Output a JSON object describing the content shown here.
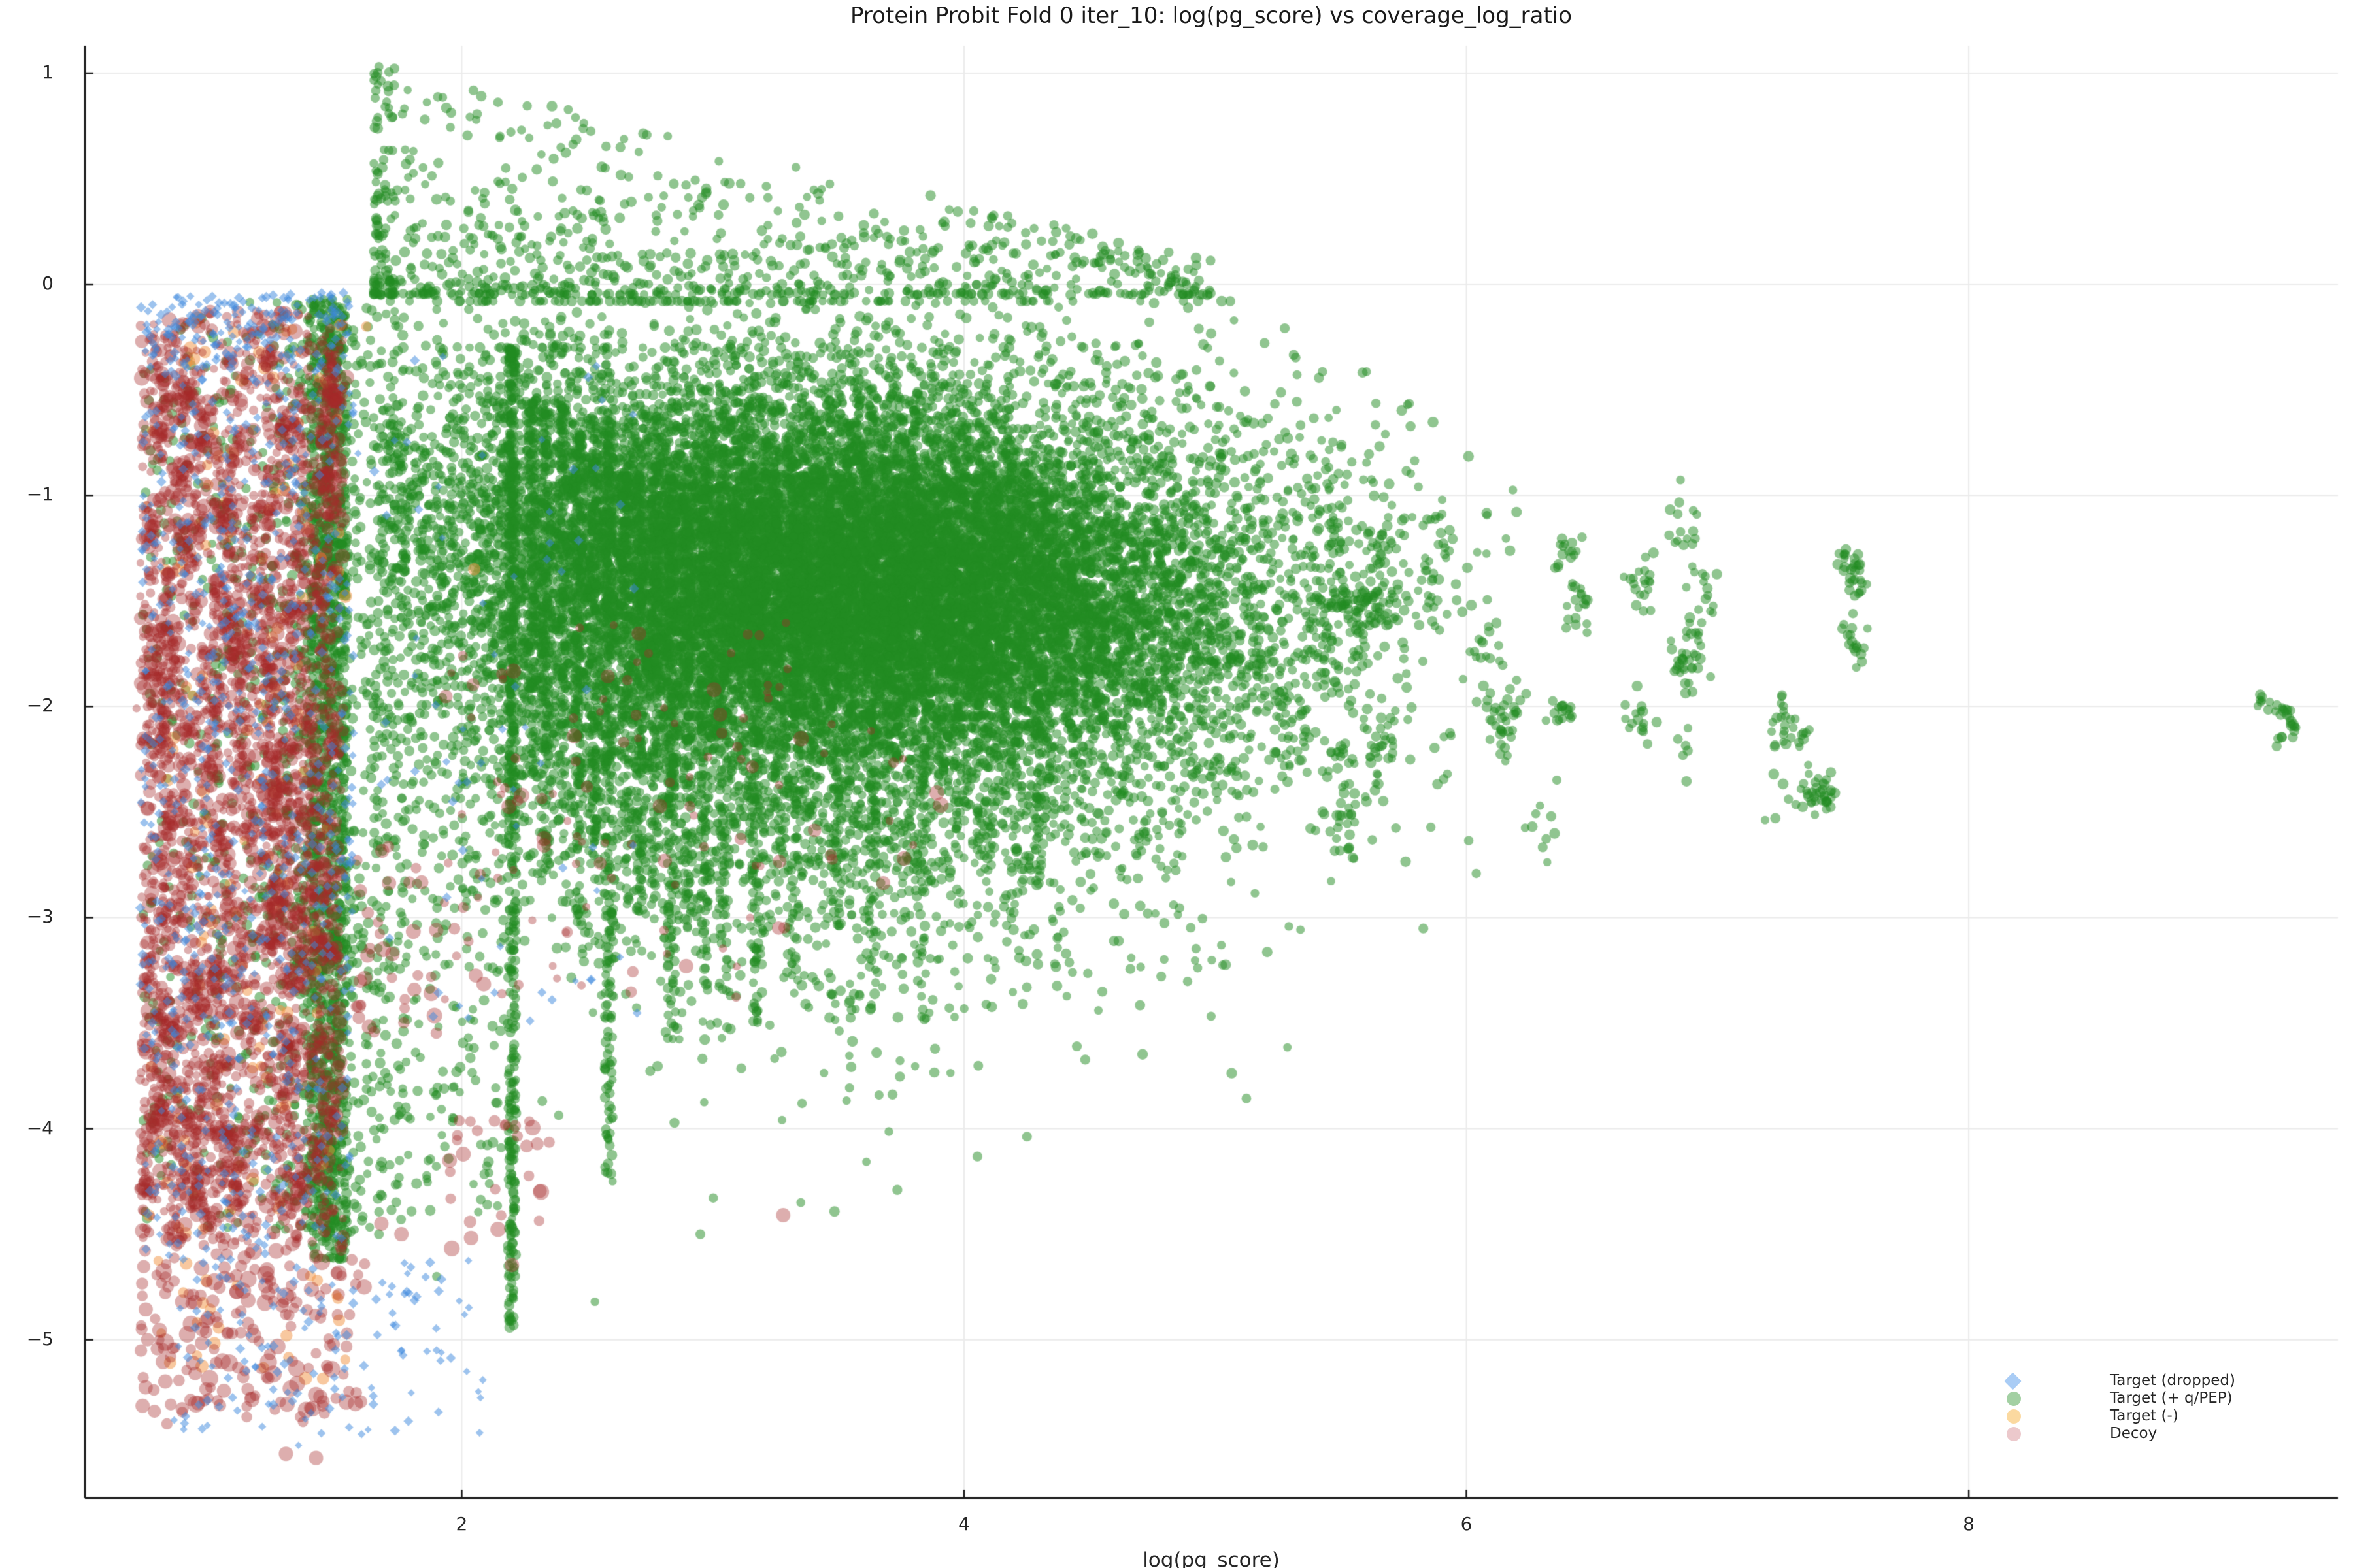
{
  "chart_data": {
    "type": "scatter",
    "title": "Protein Probit Fold 0 iter_10: log(pg_score) vs coverage_log_ratio",
    "xlabel": "log(pg_score)",
    "ylabel": "",
    "xlim": [
      0.5,
      9.47
    ],
    "ylim": [
      -5.75,
      1.13
    ],
    "xticks": [
      2,
      4,
      6,
      8
    ],
    "yticks": [
      1,
      0,
      -1,
      -2,
      -3,
      -4,
      -5
    ],
    "grid": true,
    "grid_color": "#ebebeb",
    "spine_color": "#1a1a1a",
    "text_color": "#262626",
    "legend": {
      "position": "lower-right",
      "items": [
        {
          "label": "Target (dropped)",
          "marker": "diamond",
          "swatch": "#a9ccf5"
        },
        {
          "label": "Target (+ q/PEP)",
          "marker": "circle",
          "swatch": "#a3d0a3"
        },
        {
          "label": "Target (-)",
          "marker": "circle",
          "swatch": "#fbd9a0"
        },
        {
          "label": "Decoy",
          "marker": "circle",
          "swatch": "#ecc9cc"
        }
      ]
    },
    "draw_order": [
      "target_plus",
      "target_minus",
      "decoy",
      "target_dropped"
    ],
    "series": {
      "target_plus": {
        "name": "Target (+ q/PEP)",
        "marker": "circle",
        "color": "#228b22",
        "alpha": 0.5,
        "r": [
          6.3,
          8.3
        ],
        "regions": [
          {
            "type": "gauss",
            "n": 12000,
            "cx": 3.55,
            "cy": -1.32,
            "sx": 0.95,
            "sy": 0.5,
            "cy_slope": -0.12,
            "clipx": [
              1.66,
              6.1
            ],
            "clipy": [
              -5.7,
              -0.08
            ]
          },
          {
            "type": "gauss",
            "n": 4500,
            "cx": 3.15,
            "cy": -1.95,
            "sx": 0.85,
            "sy": 0.68,
            "cy_slope": -0.15,
            "clipx": [
              1.66,
              5.3
            ],
            "clipy": [
              -5.7,
              -0.3
            ]
          },
          {
            "type": "gauss",
            "n": 5000,
            "cx": 3.6,
            "cy": -1.45,
            "sx": 0.62,
            "sy": 0.36,
            "cy_slope": 0,
            "clipx": [
              1.8,
              5.6
            ],
            "clipy": [
              -5.7,
              -0.15
            ]
          },
          {
            "type": "fan",
            "n": 900,
            "x": [
              1.65,
              5.0
            ],
            "xpow": 1.6,
            "ytop0": 1.05,
            "ytop_slope": -0.28,
            "ybase": -0.05,
            "ypow": 2.2
          },
          {
            "type": "columns",
            "w": 0.016,
            "ypow": 1.35,
            "cols": [
              [
                2.2,
                -0.3,
                -4.95,
                500
              ],
              [
                2.28,
                -0.55,
                -2.3,
                110
              ],
              [
                2.335,
                -0.6,
                -2.8,
                140
              ],
              [
                2.4,
                -0.55,
                -2.55,
                120
              ],
              [
                2.465,
                -0.7,
                -3.05,
                150
              ],
              [
                2.525,
                -0.8,
                -2.65,
                110
              ],
              [
                2.585,
                -0.6,
                -4.25,
                240
              ],
              [
                2.65,
                -0.9,
                -2.95,
                110
              ],
              [
                2.71,
                -0.9,
                -3.1,
                130
              ],
              [
                2.77,
                -1.0,
                -2.85,
                100
              ],
              [
                2.835,
                -0.85,
                -3.6,
                160
              ],
              [
                2.9,
                -1.0,
                -3.05,
                100
              ],
              [
                2.965,
                -0.95,
                -3.35,
                120
              ],
              [
                3.04,
                -1.05,
                -3.35,
                110
              ],
              [
                3.17,
                -1.1,
                -3.5,
                120
              ],
              [
                3.33,
                -1.1,
                -3.3,
                100
              ],
              [
                3.5,
                -1.2,
                -3.05,
                90
              ],
              [
                3.635,
                -1.3,
                -3.45,
                85
              ],
              [
                3.84,
                -1.6,
                -3.5,
                65
              ],
              [
                4.3,
                -1.8,
                -2.85,
                55
              ]
            ]
          },
          {
            "type": "uniform",
            "n": 1500,
            "x": [
              1.4,
              1.545
            ],
            "y": [
              -4.62,
              -0.07
            ]
          },
          {
            "type": "uniform",
            "n": 700,
            "x": [
              0.73,
              1.4
            ],
            "xpow": -1.8,
            "y": [
              -4.5,
              -0.07
            ]
          },
          {
            "type": "uniform",
            "n": 350,
            "x": [
              1.55,
              1.78
            ],
            "y": [
              -4.5,
              -0.1
            ]
          },
          {
            "type": "uniform",
            "n": 120,
            "x": [
              1.78,
              2.18
            ],
            "y": [
              -4.4,
              -2.6
            ]
          },
          {
            "type": "clumps",
            "count": 38,
            "cx": [
              5.45,
              7.6
            ],
            "cxpow": 1.4,
            "cy": [
              -2.6,
              -1.0
            ],
            "k": [
              4,
              22
            ],
            "sx": 0.03,
            "sy": 0.05
          },
          {
            "type": "clump_list",
            "sx": 0.013,
            "sy": 0.022,
            "clumps": [
              [
                9.16,
                -1.97,
                6
              ],
              [
                9.205,
                -2.0,
                4
              ],
              [
                9.26,
                -2.02,
                9
              ],
              [
                9.275,
                -2.09,
                8
              ],
              [
                9.235,
                -2.15,
                4
              ]
            ]
          },
          {
            "type": "clump_list",
            "sx": 0.025,
            "sy": 0.04,
            "clumps": [
              [
                4.24,
                -2.75,
                12
              ],
              [
                4.1,
                -2.58,
                8
              ],
              [
                4.64,
                -2.42,
                10
              ],
              [
                5.05,
                -2.32,
                9
              ],
              [
                5.3,
                -2.2,
                8
              ]
            ]
          },
          {
            "type": "points",
            "pts": [
              [
                2.53,
                -4.82
              ],
              [
                2.95,
                -4.5
              ],
              [
                3.35,
                -4.35
              ],
              [
                1.9,
                -4.7
              ]
            ]
          }
        ]
      },
      "target_minus": {
        "name": "Target (-)",
        "marker": "circle",
        "color": "#f1913f",
        "alpha": 0.5,
        "r": [
          7.5,
          10.5
        ],
        "regions": [
          {
            "type": "uniform",
            "n": 130,
            "x": [
              0.74,
              1.545
            ],
            "y": [
              -4.5,
              -0.13
            ]
          },
          {
            "type": "uniform",
            "n": 25,
            "x": [
              0.78,
              1.6
            ],
            "y": [
              -5.2,
              -4.6
            ]
          },
          {
            "type": "points",
            "pts": [
              [
                1.62,
                -0.2
              ],
              [
                2.05,
                -1.35
              ]
            ]
          }
        ]
      },
      "decoy": {
        "name": "Decoy",
        "marker": "circle",
        "color": "#a52a2a",
        "alpha": 0.38,
        "r": [
          6,
          12
        ],
        "rpow": 2,
        "regions": [
          {
            "type": "uniform",
            "n": 2000,
            "x": [
              0.72,
              1.53
            ],
            "y": [
              -4.55,
              -0.12
            ]
          },
          {
            "type": "clumps",
            "count": 170,
            "cx": [
              0.75,
              1.5
            ],
            "cxpow": 1,
            "cy": [
              -4.4,
              -0.35
            ],
            "k": [
              7,
              16
            ],
            "sx": 0.02,
            "sy": 0.055
          },
          {
            "type": "uniform",
            "n": 200,
            "x": [
              0.72,
              1.62
            ],
            "y": [
              -5.4,
              -4.55
            ],
            "r": [
              8,
              13.5
            ]
          },
          {
            "type": "uniform",
            "n": 35,
            "x": [
              1.58,
              1.9
            ],
            "y": [
              -3.55,
              -2.65
            ],
            "r": [
              8,
              13
            ]
          },
          {
            "type": "uniform",
            "n": 30,
            "x": [
              1.95,
              2.35
            ],
            "y": [
              -4.65,
              -3.9
            ],
            "r": [
              8,
              12.5
            ]
          },
          {
            "type": "uniform",
            "n": 110,
            "x": [
              1.9,
              3.3
            ],
            "y": [
              -3.4,
              -1.6
            ]
          },
          {
            "type": "uniform",
            "n": 15,
            "x": [
              3.3,
              4.0
            ],
            "y": [
              -3.0,
              -2.0
            ]
          },
          {
            "type": "points",
            "r": 11,
            "pts": [
              [
                3.28,
                -4.41
              ],
              [
                1.68,
                -4.45
              ],
              [
                1.76,
                -4.5
              ],
              [
                1.3,
                -5.54
              ],
              [
                1.42,
                -5.56
              ],
              [
                0.95,
                -5.3
              ]
            ]
          }
        ]
      },
      "target_dropped": {
        "name": "Target (dropped)",
        "marker": "diamond",
        "color": "#3b87de",
        "alpha": 0.5,
        "r": [
          5.5,
          8
        ],
        "regions": [
          {
            "type": "uniform",
            "n": 750,
            "x": [
              0.72,
              1.57
            ],
            "y": [
              -4.6,
              -0.04
            ]
          },
          {
            "type": "uniform",
            "n": 120,
            "x": [
              0.74,
              1.55
            ],
            "y": [
              -0.4,
              -0.04
            ]
          },
          {
            "type": "uniform",
            "n": 130,
            "x": [
              0.85,
              2.1
            ],
            "y": [
              -5.45,
              -4.6
            ]
          },
          {
            "type": "uniform",
            "n": 70,
            "x": [
              1.58,
              2.7
            ],
            "y": [
              -3.5,
              -0.3
            ]
          },
          {
            "type": "points",
            "pts": [
              [
                1.35,
                -5.5
              ],
              [
                2.02,
                -5.15
              ],
              [
                1.9,
                -5.05
              ]
            ]
          }
        ]
      }
    }
  }
}
